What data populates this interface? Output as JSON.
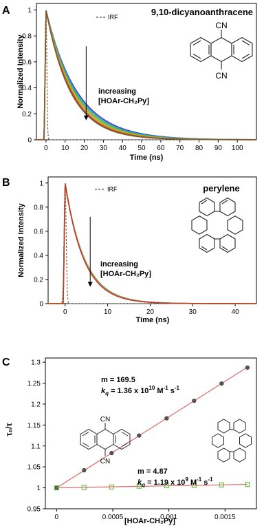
{
  "chart_data": [
    {
      "panel_label": "A",
      "type": "line",
      "title": "9,10-dicyanoanthracene",
      "xlabel": "Time (ns)",
      "ylabel": "Normalized Intensity",
      "xlim": [
        -5,
        110
      ],
      "ylim": [
        0,
        1.05
      ],
      "x_ticks": [
        0,
        10,
        20,
        30,
        40,
        50,
        60,
        70,
        80,
        90,
        100
      ],
      "y_ticks": [
        0,
        0.2,
        0.4,
        0.6,
        0.8,
        1
      ],
      "grid": false,
      "legend": {
        "position": "top-center",
        "entries": [
          "IRF"
        ]
      },
      "annotation": {
        "line1": "increasing",
        "line2": "[HOAr-CH₂Py]",
        "x": 21,
        "y_top": 0.72,
        "y_bottom": 0.15
      },
      "structure_labels": [
        "CN",
        "CN"
      ],
      "series": [
        {
          "name": "IRF",
          "style": "dashed",
          "color": "#555555",
          "decay": "irf",
          "t0": 0,
          "width": 0.6
        },
        {
          "color": "#3a3acc",
          "decay": "exp",
          "t0": 0,
          "rise": 1.0,
          "tau": 16.3
        },
        {
          "color": "#3aa0c8",
          "decay": "exp",
          "t0": 0,
          "rise": 1.0,
          "tau": 15.7
        },
        {
          "color": "#4caf50",
          "decay": "exp",
          "t0": 0,
          "rise": 1.0,
          "tau": 15.1
        },
        {
          "color": "#8bc34a",
          "decay": "exp",
          "t0": 0,
          "rise": 1.0,
          "tau": 14.5
        },
        {
          "color": "#d4a017",
          "decay": "exp",
          "t0": 0,
          "rise": 1.0,
          "tau": 14.0
        },
        {
          "color": "#c0392b",
          "decay": "exp",
          "t0": 0,
          "rise": 1.0,
          "tau": 13.4
        },
        {
          "color": "#7a5c2e",
          "decay": "exp",
          "t0": 0,
          "rise": 1.0,
          "tau": 12.9
        }
      ]
    },
    {
      "panel_label": "B",
      "type": "line",
      "title": "perylene",
      "xlabel": "Time (ns)",
      "ylabel": "Normalized Intensity",
      "xlim": [
        -4,
        45
      ],
      "ylim": [
        0,
        1.05
      ],
      "x_ticks": [
        0,
        10,
        20,
        30,
        40
      ],
      "y_ticks": [
        0,
        0.2,
        0.4,
        0.6,
        0.8,
        1
      ],
      "grid": false,
      "legend": {
        "position": "top-center",
        "entries": [
          "IRF"
        ]
      },
      "annotation": {
        "line1": "increasing",
        "line2": "[HOAr-CH₂Py]",
        "x": 5.9,
        "y_top": 0.72,
        "y_bottom": 0.14
      },
      "series": [
        {
          "name": "IRF",
          "style": "dashed",
          "color": "#555555",
          "decay": "irf",
          "t0": 0,
          "width": 0.35
        },
        {
          "color": "#7b5ea7",
          "decay": "exp",
          "t0": 0,
          "rise": 0.45,
          "tau": 4.6
        },
        {
          "color": "#4caf50",
          "decay": "exp",
          "t0": 0,
          "rise": 0.45,
          "tau": 4.55
        },
        {
          "color": "#8bc34a",
          "decay": "exp",
          "t0": 0,
          "rise": 0.45,
          "tau": 4.5
        },
        {
          "color": "#d4a017",
          "decay": "exp",
          "t0": 0,
          "rise": 0.45,
          "tau": 4.45
        },
        {
          "color": "#c0392b",
          "decay": "exp",
          "t0": 0,
          "rise": 0.45,
          "tau": 4.4
        }
      ]
    },
    {
      "panel_label": "C",
      "type": "scatter",
      "xlabel": "[HOAr-CH₂Py]",
      "ylabel": "τ₀/τ",
      "xlim": [
        -0.0001,
        0.00178
      ],
      "ylim": [
        0.95,
        1.31
      ],
      "x_ticks": [
        0,
        0.0005,
        0.001,
        0.0015
      ],
      "x_tick_labels": [
        "0",
        "0.0005",
        "0.001",
        "0.0015"
      ],
      "y_ticks": [
        0.95,
        1,
        1.05,
        1.1,
        1.15,
        1.2,
        1.25,
        1.3
      ],
      "y_tick_labels": [
        "0.95",
        "1",
        "1.05",
        "1.1",
        "1.15",
        "1.2",
        "1.25",
        "1.3"
      ],
      "grid": false,
      "structure_labels": [
        "CN",
        "CN"
      ],
      "series": [
        {
          "marker": "circle",
          "marker_color": "#555555",
          "fit_color": "#e06666",
          "x": [
            0,
            0.000245,
            0.00049,
            0.000735,
            0.00098,
            0.001225,
            0.00147,
            0.0017
          ],
          "y": [
            1.0,
            1.042,
            1.083,
            1.125,
            1.166,
            1.208,
            1.249,
            1.287
          ],
          "fit": {
            "slope": 169.5,
            "intercept": 1.0
          },
          "label_m": "m = 169.5",
          "label_kq_prefix": "k",
          "label_kq_sub": "q",
          "label_kq_value": " = 1.36 x 10",
          "label_kq_exp": "10",
          "label_kq_units": " M",
          "label_kq_units_exp": "-1",
          "label_kq_tail": " s",
          "label_kq_tail_exp": "-1"
        },
        {
          "marker": "square",
          "marker_color": "#6abf4b",
          "fit_color": "#e06666",
          "x": [
            0,
            0.000245,
            0.00049,
            0.000735,
            0.00098,
            0.001225,
            0.00147,
            0.0017
          ],
          "y": [
            1.0,
            1.001,
            1.002,
            1.004,
            1.005,
            1.006,
            1.007,
            1.008
          ],
          "fit": {
            "slope": 4.87,
            "intercept": 1.0
          },
          "label_m": "m = 4.87",
          "label_kq_prefix": "k",
          "label_kq_sub": "q",
          "label_kq_value": " = 1.19 x 10",
          "label_kq_exp": "9",
          "label_kq_units": " M",
          "label_kq_units_exp": "-1",
          "label_kq_tail": " s",
          "label_kq_tail_exp": "-1"
        }
      ]
    }
  ]
}
